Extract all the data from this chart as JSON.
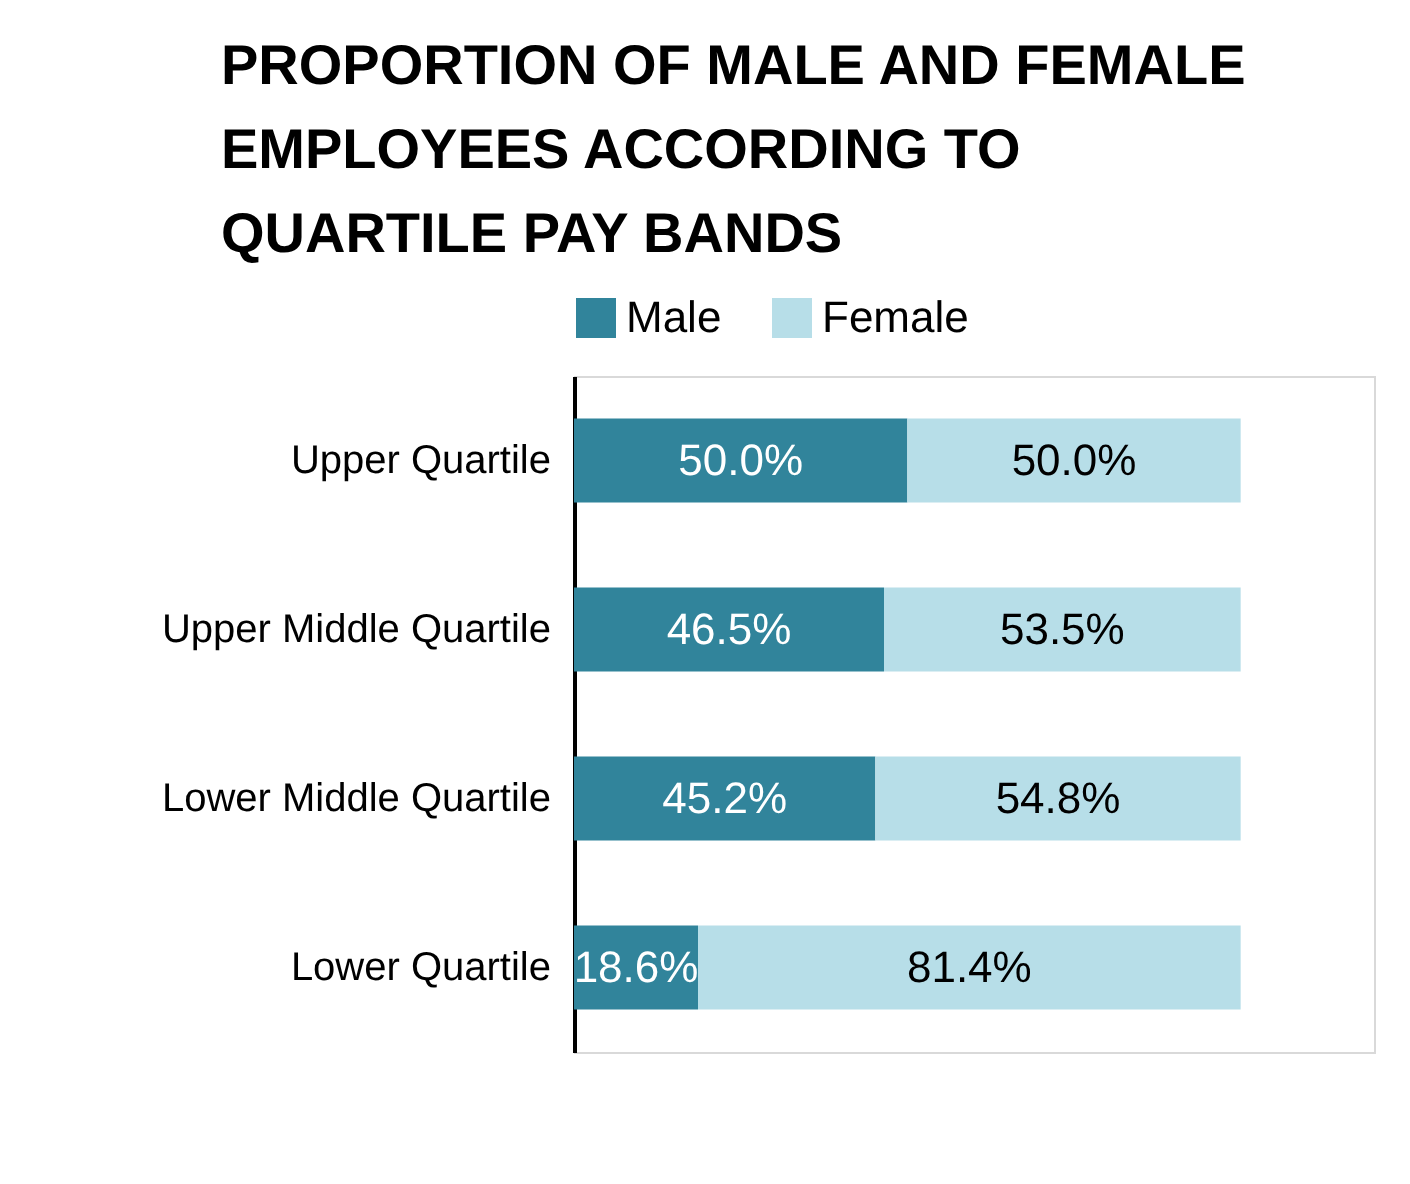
{
  "chart_data": {
    "type": "bar",
    "orientation": "horizontal",
    "stacked": true,
    "title": "PROPORTION OF MALE AND FEMALE EMPLOYEES ACCORDING TO QUARTILE PAY BANDS",
    "categories": [
      "Upper Quartile",
      "Upper Middle Quartile",
      "Lower Middle Quartile",
      "Lower Quartile"
    ],
    "series": [
      {
        "name": "Male",
        "color": "#31849b",
        "values": [
          50.0,
          46.5,
          45.2,
          18.6
        ],
        "value_labels": [
          "50.0%",
          "46.5%",
          "45.2%",
          "18.6%"
        ]
      },
      {
        "name": "Female",
        "color": "#b7dee8",
        "values": [
          50.0,
          53.5,
          54.8,
          81.4
        ],
        "value_labels": [
          "50.0%",
          "53.5%",
          "54.8%",
          "81.4%"
        ]
      }
    ],
    "xlim": [
      0,
      120
    ],
    "tick_labels": "y",
    "legend": "top"
  }
}
